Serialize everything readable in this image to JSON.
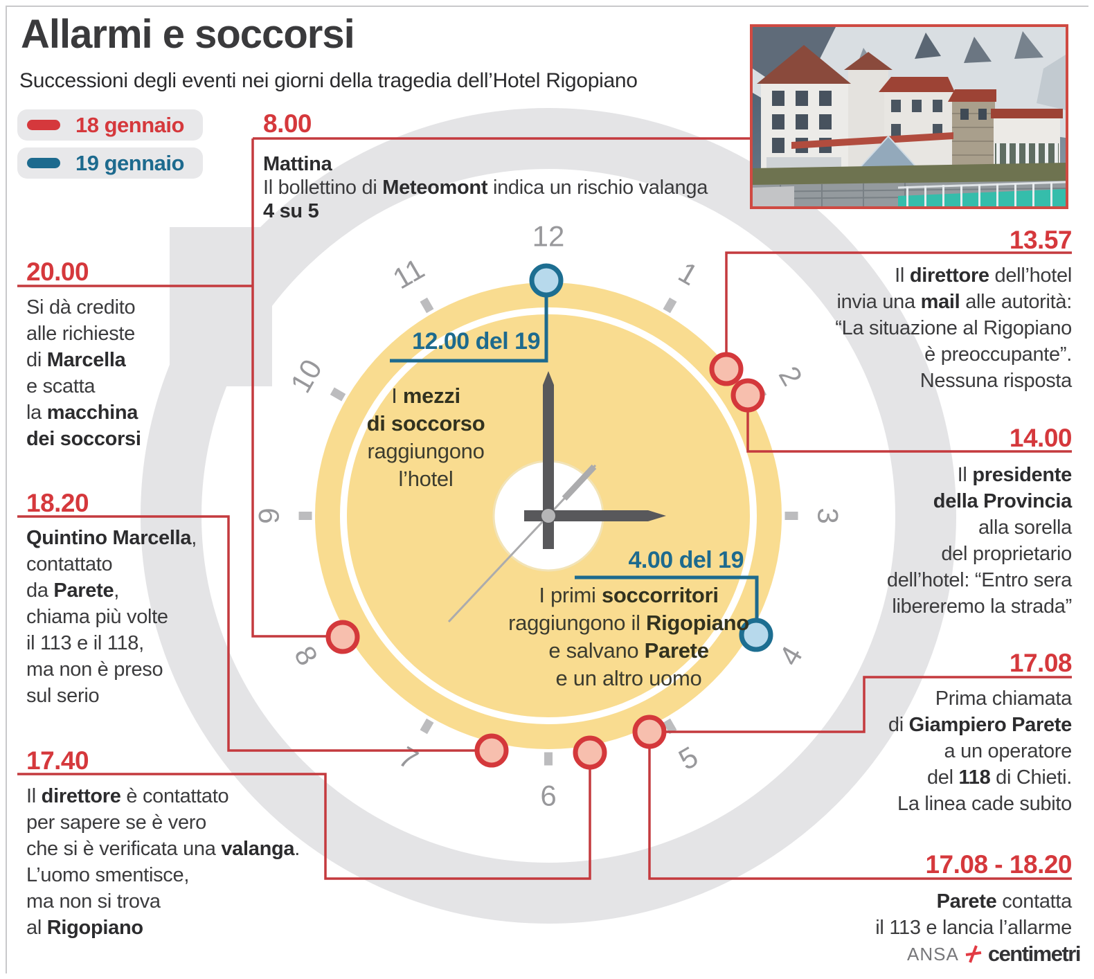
{
  "header": {
    "title": "Allarmi e soccorsi",
    "subtitle": "Successioni degli eventi nei giorni della tragedia dell’Hotel Rigopiano"
  },
  "legend": [
    {
      "label": "18 gennaio",
      "day": "18"
    },
    {
      "label": "19 gennaio",
      "day": "19"
    }
  ],
  "colors": {
    "day18": "#d5383c",
    "day19": "#1d6a8e",
    "line18": "#c43a3e",
    "marker_red_fill": "#f7bfae",
    "marker_blue_fill": "#b7d9ec",
    "clock_face": "#f9dc90",
    "watermark": "#e4e4e6",
    "numeral": "#98989b"
  },
  "clock": {
    "numerals": [
      "12",
      "1",
      "2",
      "3",
      "4",
      "5",
      "6",
      "7",
      "8",
      "9",
      "10",
      "11"
    ]
  },
  "events": [
    {
      "id": "e0800",
      "time": "8.00",
      "day": "18",
      "lines": [
        "**Mattina**",
        "Il bollettino di **Meteomont** indica un rischio valanga",
        "**4 su 5**"
      ]
    },
    {
      "id": "e2000",
      "time": "20.00",
      "day": "18",
      "lines": [
        "Si dà credito",
        "alle richieste",
        "di **Marcella**",
        "e scatta",
        "la **macchina**",
        "**dei soccorsi**"
      ]
    },
    {
      "id": "e1820",
      "time": "18.20",
      "day": "18",
      "lines": [
        "**Quintino Marcella**,",
        "contattato",
        "da **Parete**,",
        "chiama più volte",
        "il 113 e il 118,",
        "ma non è preso",
        "sul serio"
      ]
    },
    {
      "id": "e1740",
      "time": "17.40",
      "day": "18",
      "lines": [
        "Il **direttore** è contattato",
        "per sapere se è vero",
        "che si è verificata una **valanga**.",
        "L’uomo smentisce,",
        "ma non si trova",
        "al **Rigopiano**"
      ]
    },
    {
      "id": "e1357",
      "time": "13.57",
      "day": "18",
      "lines": [
        "Il **direttore** dell’hotel",
        "invia una **mail** alle autorità:",
        "“La situazione al Rigopiano",
        "è preoccupante”.",
        "Nessuna risposta"
      ]
    },
    {
      "id": "e1400",
      "time": "14.00",
      "day": "18",
      "lines": [
        "Il **presidente**",
        "**della Provincia**",
        "alla sorella",
        "del proprietario",
        "dell’hotel: “Entro sera",
        "libereremo la strada”"
      ]
    },
    {
      "id": "e1708",
      "time": "17.08",
      "day": "18",
      "lines": [
        "Prima chiamata",
        "di **Giampiero Parete**",
        "a un operatore",
        "del **118** di Chieti.",
        "La linea cade subito"
      ]
    },
    {
      "id": "e170818",
      "time": "17.08 - 18.20",
      "day": "18",
      "lines": [
        "**Parete** contatta",
        "il 113 e lancia l’allarme"
      ]
    },
    {
      "id": "e1200d19",
      "time": "12.00 del 19",
      "day": "19",
      "lines": [
        "I **mezzi**",
        "**di soccorso**",
        "raggiungono",
        "l’hotel"
      ]
    },
    {
      "id": "e0400d19",
      "time": "4.00 del 19",
      "day": "19",
      "lines": [
        "I primi **soccorritori**",
        "raggiungono il **Rigopiano**",
        "e salvano **Parete**",
        "e un altro uomo"
      ]
    }
  ],
  "footer": {
    "agency": "ANSA",
    "brand": "centimetri"
  }
}
